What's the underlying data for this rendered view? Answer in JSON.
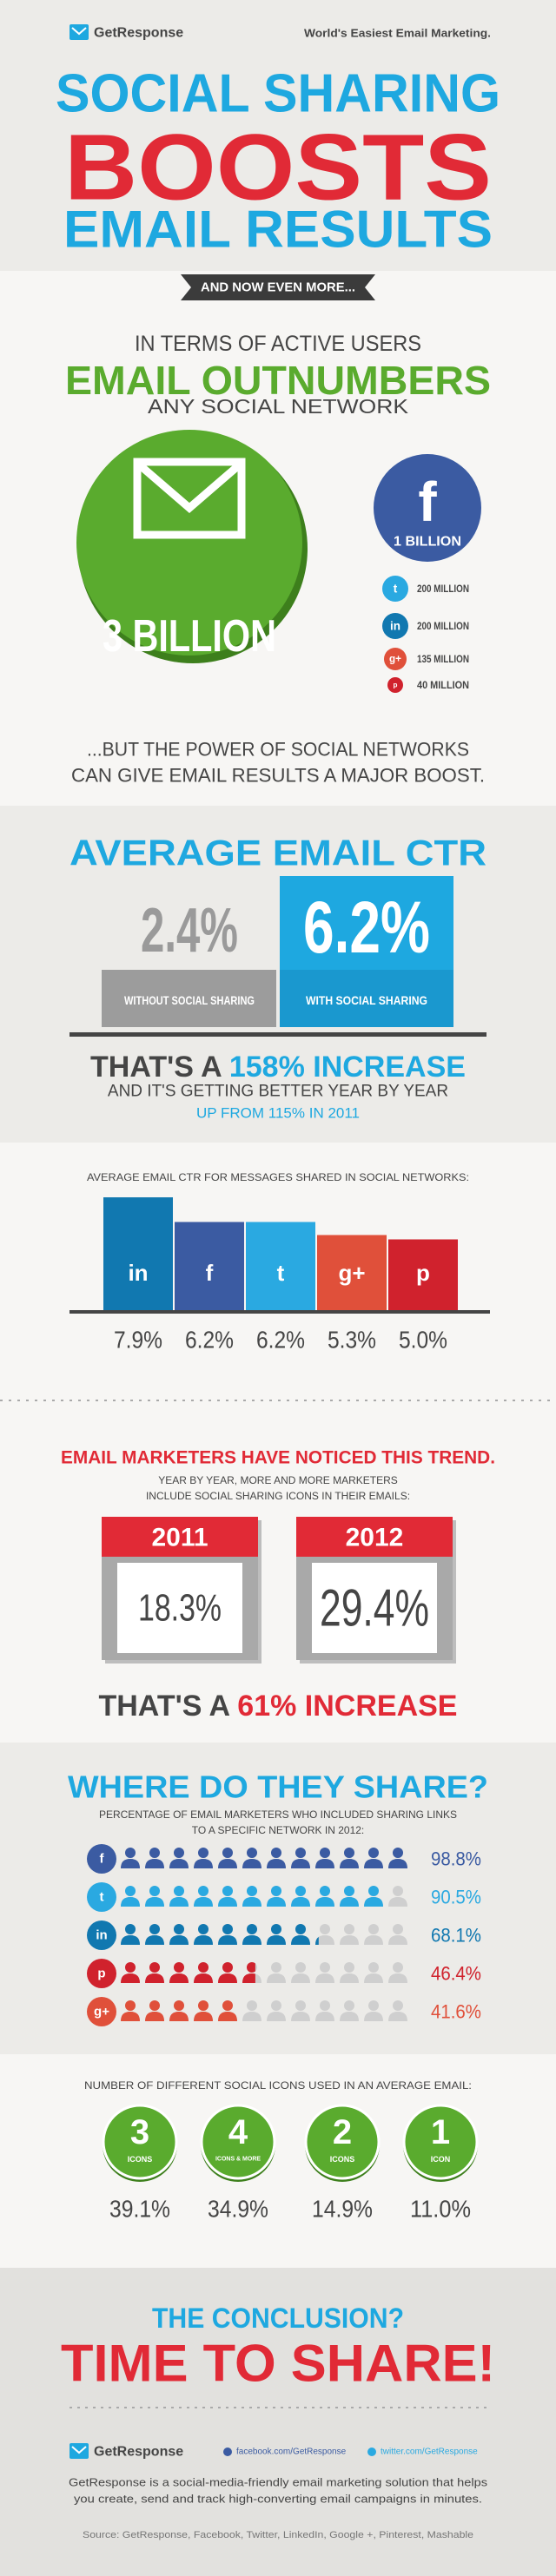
{
  "header": {
    "logo": "GetResponse",
    "tagline": "World's Easiest Email Marketing.",
    "title_lines": [
      "SOCIAL SHARING",
      "BOOSTS",
      "EMAIL RESULTS"
    ],
    "ribbon": "AND NOW EVEN MORE..."
  },
  "users": {
    "intro": "IN TERMS OF ACTIVE USERS",
    "headline": "EMAIL OUTNUMBERS",
    "sub": "ANY SOCIAL NETWORK",
    "email": "3 BILLION",
    "facebook_icon": "f",
    "facebook": "1 BILLION",
    "others": [
      {
        "icon": "t",
        "label": "200 MILLION"
      },
      {
        "icon": "in",
        "label": "200 MILLION"
      },
      {
        "icon": "g+",
        "label": "135 MILLION"
      },
      {
        "icon": "p",
        "label": "40 MILLION"
      }
    ],
    "closing_lines": [
      "...BUT THE POWER OF SOCIAL NETWORKS",
      "CAN GIVE EMAIL RESULTS A MAJOR BOOST."
    ]
  },
  "ctr": {
    "title": "AVERAGE EMAIL CTR",
    "without": {
      "value": "2.4%",
      "label": "WITHOUT SOCIAL SHARING"
    },
    "with": {
      "value": "6.2%",
      "label": "WITH SOCIAL SHARING"
    },
    "increase": {
      "prefix": "THAT'S A ",
      "highlight": "158% INCREASE"
    },
    "line2": "AND IT'S GETTING BETTER YEAR BY YEAR",
    "line3": "UP FROM 115% IN 2011"
  },
  "networks": {
    "title": "AVERAGE EMAIL CTR FOR MESSAGES SHARED IN SOCIAL NETWORKS:",
    "icons": [
      "in",
      "f",
      "t",
      "g+",
      "p"
    ],
    "values": [
      7.9,
      6.2,
      6.2,
      5.3,
      5.0
    ],
    "value_labels": [
      "7.9%",
      "6.2%",
      "6.2%",
      "5.3%",
      "5.0%"
    ],
    "colors": [
      "#1178b0",
      "#3b5ba2",
      "#2aa9e1",
      "#e0503a",
      "#d0222d"
    ]
  },
  "trend": {
    "title": "EMAIL MARKETERS HAVE NOTICED THIS TREND.",
    "sub_lines": [
      "YEAR BY YEAR, MORE AND MORE MARKETERS",
      "INCLUDE SOCIAL SHARING ICONS IN THEIR EMAILS:"
    ],
    "years": [
      {
        "year": "2011",
        "value": "18.3%"
      },
      {
        "year": "2012",
        "value": "29.4%"
      }
    ],
    "increase": {
      "prefix": "THAT'S A ",
      "highlight": "61% INCREASE"
    }
  },
  "share": {
    "title": "WHERE DO THEY SHARE?",
    "sub_lines": [
      "PERCENTAGE OF EMAIL MARKETERS WHO INCLUDED SHARING LINKS",
      "TO A SPECIFIC NETWORK IN 2012:"
    ],
    "icons": [
      "f",
      "t",
      "in",
      "p",
      "g+"
    ],
    "values": [
      98.8,
      90.5,
      68.1,
      46.4,
      41.6
    ],
    "value_labels": [
      "98.8%",
      "90.5%",
      "68.1%",
      "46.4%",
      "41.6%"
    ],
    "colors": [
      "#3b5ba2",
      "#2aa9e1",
      "#1178b0",
      "#d0222d",
      "#e0503a"
    ]
  },
  "icon_counts": {
    "title": "NUMBER OF DIFFERENT SOCIAL ICONS USED IN AN AVERAGE EMAIL:",
    "items": [
      {
        "count": "3",
        "caption": "ICONS",
        "share": "39.1%"
      },
      {
        "count": "4",
        "caption": "ICONS & MORE",
        "share": "34.9%"
      },
      {
        "count": "2",
        "caption": "ICONS",
        "share": "14.9%"
      },
      {
        "count": "1",
        "caption": "ICON",
        "share": "11.0%"
      }
    ]
  },
  "conclusion": {
    "question": "THE CONCLUSION?",
    "answer": "TIME TO SHARE!"
  },
  "footer": {
    "logo": "GetResponse",
    "facebook": "facebook.com/GetResponse",
    "twitter": "twitter.com/GetResponse",
    "description_lines": [
      "GetResponse is a social-media-friendly email marketing solution that helps",
      "you create, send and track high-converting email campaigns in minutes."
    ],
    "source": "Source: GetResponse, Facebook, Twitter, LinkedIn, Google +, Pinterest, Mashable"
  }
}
